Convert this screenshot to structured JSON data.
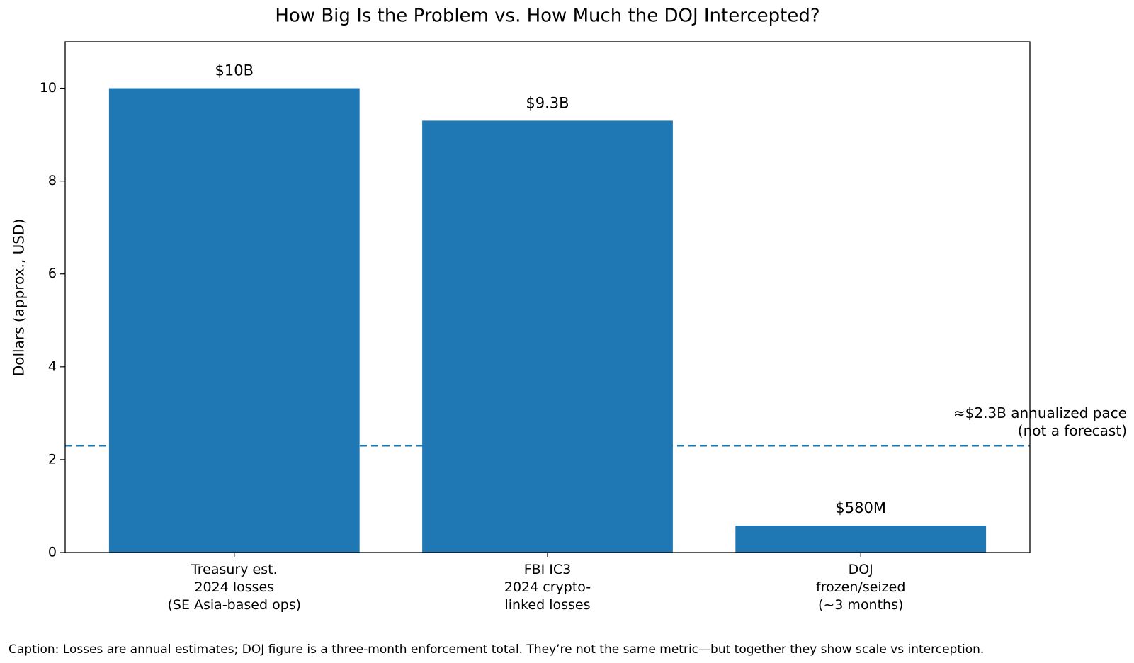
{
  "chart_data": {
    "type": "bar",
    "title": "How Big Is the Problem vs. How Much the DOJ Intercepted?",
    "ylabel": "Dollars (approx., USD)",
    "categories": [
      "Treasury est.\n2024 losses\n(SE Asia-based ops)",
      "FBI IC3\n2024 crypto-\nlinked losses",
      "DOJ\nfrozen/seized\n(~3 months)"
    ],
    "values": [
      10,
      9.3,
      0.58
    ],
    "value_labels": [
      "$10B",
      "$9.3B",
      "$580M"
    ],
    "color": "#1f77b4",
    "ylim": [
      0,
      11
    ],
    "yticks": [
      0,
      2,
      4,
      6,
      8,
      10
    ],
    "reference_line": {
      "value": 2.3,
      "label": "≈$2.3B annualized pace\n(not a forecast)"
    },
    "caption": "Caption: Losses are annual estimates; DOJ figure is a three-month enforcement total. They’re not the same metric—but together they show scale vs interception."
  }
}
